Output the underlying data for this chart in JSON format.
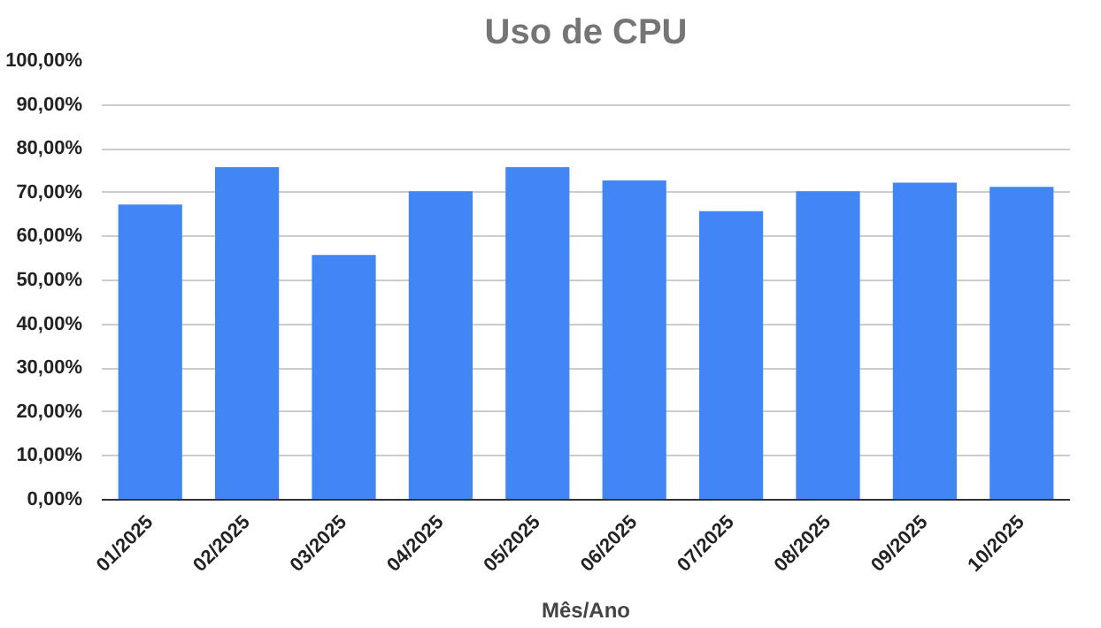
{
  "chart_data": {
    "type": "bar",
    "title": "Uso de CPU",
    "xlabel": "Mês/Ano",
    "categories": [
      "01/2025",
      "02/2025",
      "03/2025",
      "04/2025",
      "05/2025",
      "06/2025",
      "07/2025",
      "08/2025",
      "09/2025",
      "10/2025"
    ],
    "values": [
      67.3,
      75.8,
      55.8,
      70.3,
      75.8,
      72.8,
      65.8,
      70.3,
      72.3,
      71.3
    ],
    "color": "#4285f4",
    "ylim": [
      0,
      100
    ],
    "yticks": [
      {
        "value": 0,
        "label": "0,00%"
      },
      {
        "value": 10,
        "label": "10,00%"
      },
      {
        "value": 20,
        "label": "20,00%"
      },
      {
        "value": 30,
        "label": "30,00%"
      },
      {
        "value": 40,
        "label": "40,00%"
      },
      {
        "value": 50,
        "label": "50,00%"
      },
      {
        "value": 60,
        "label": "60,00%"
      },
      {
        "value": 70,
        "label": "70,00%"
      },
      {
        "value": 80,
        "label": "80,00%"
      },
      {
        "value": 90,
        "label": "90,00%"
      },
      {
        "value": 100,
        "label": "100,00%"
      }
    ],
    "grid": "y"
  }
}
